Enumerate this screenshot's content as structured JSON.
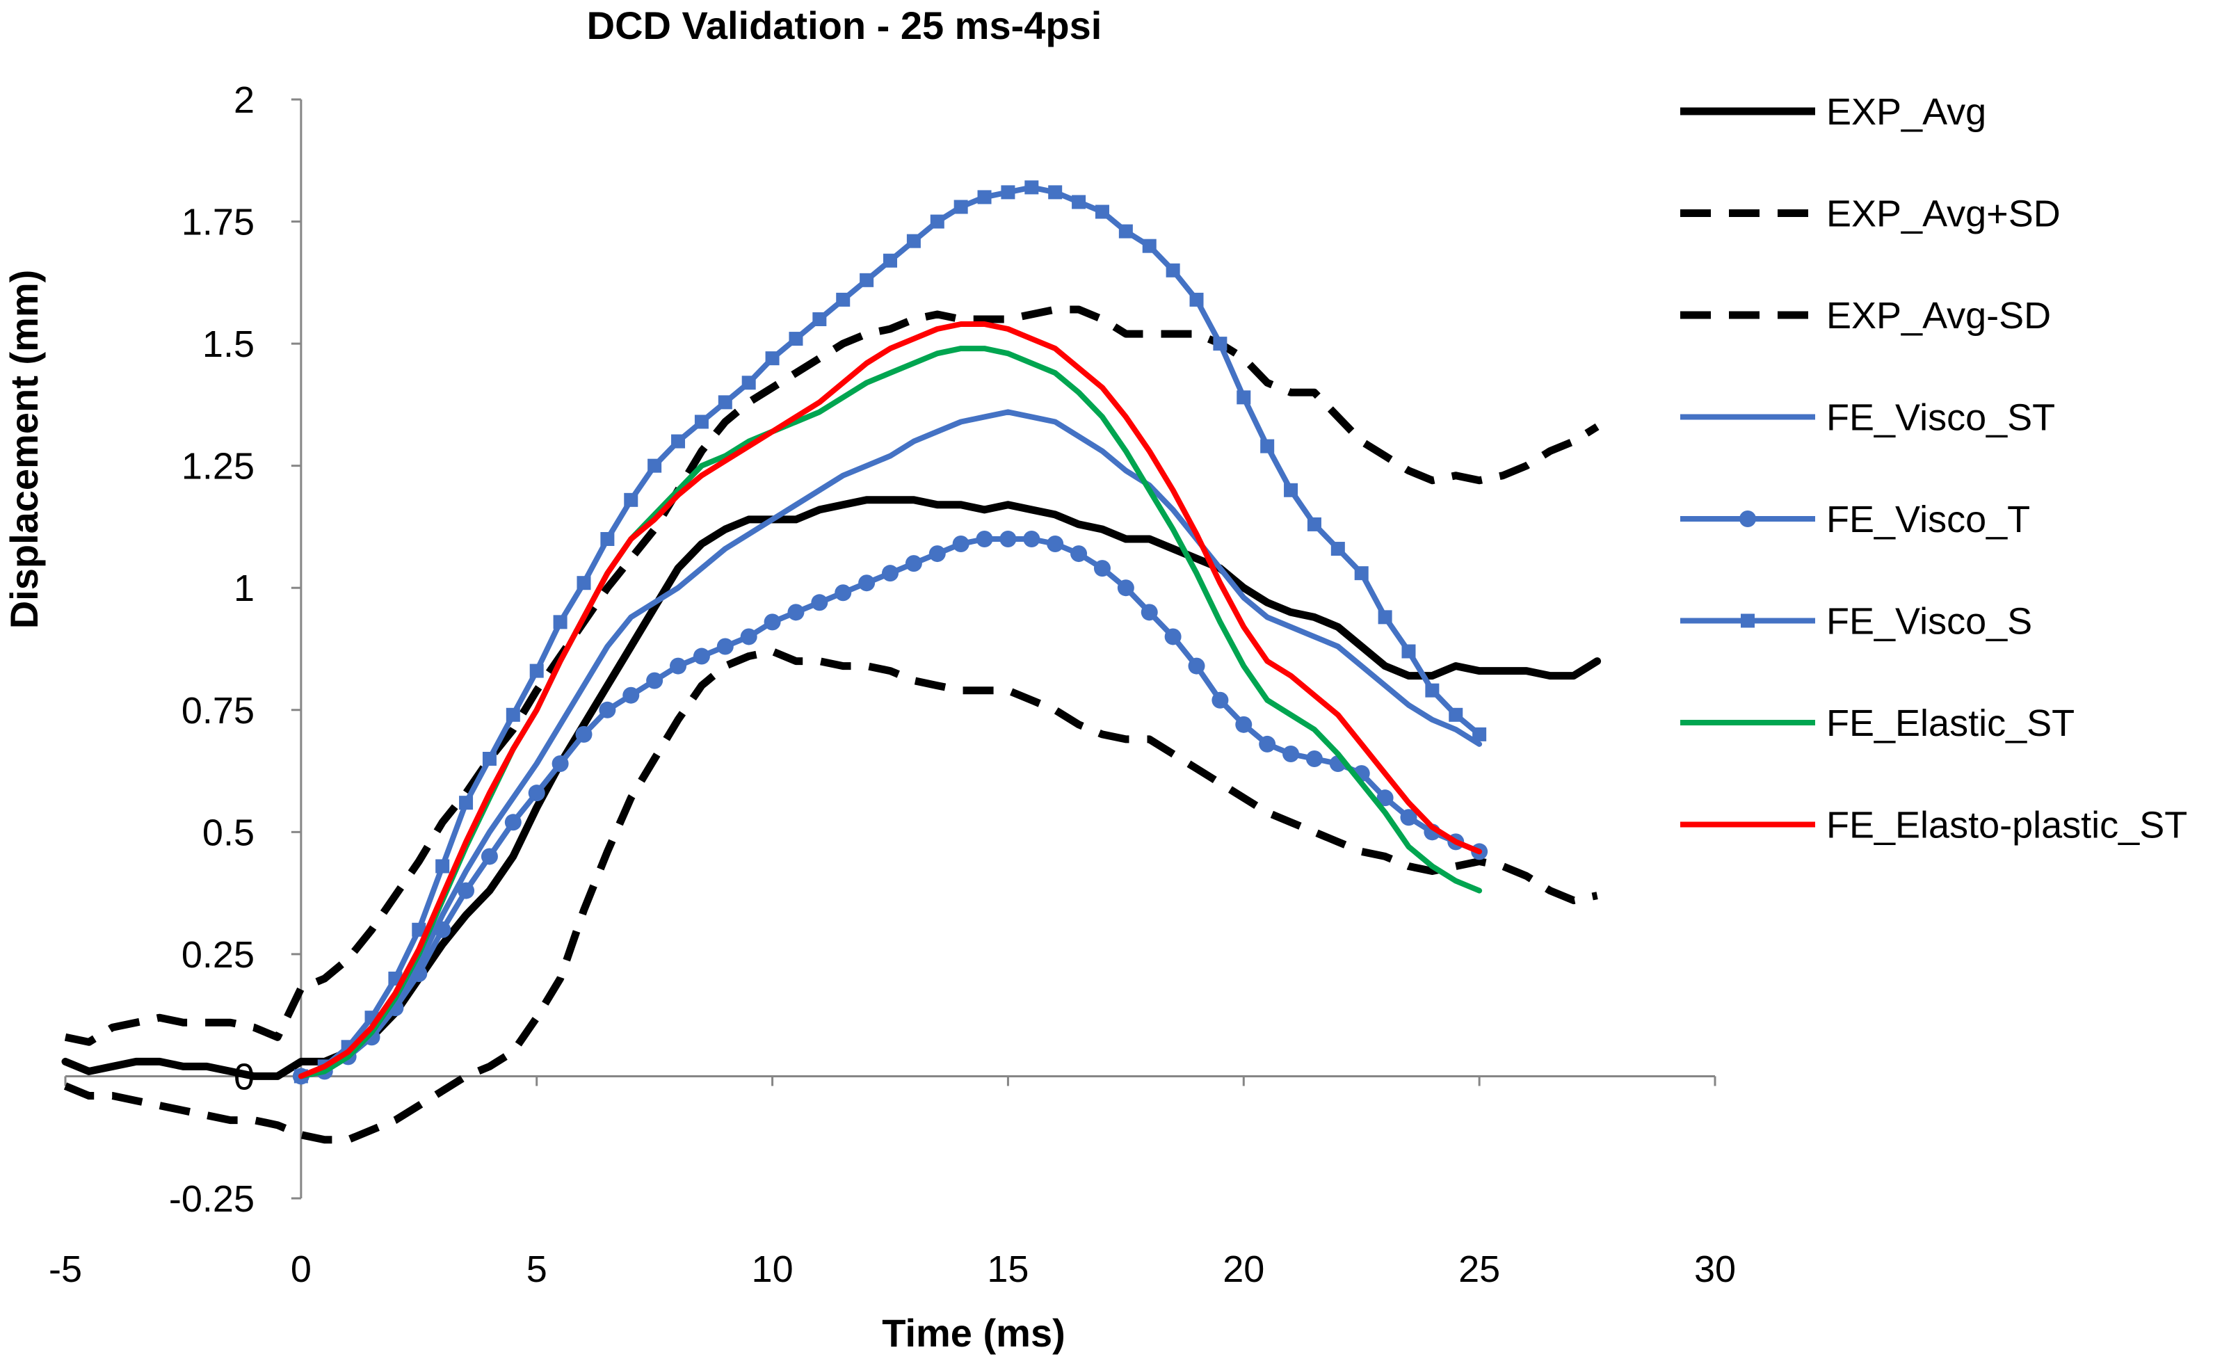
{
  "chart_data": {
    "type": "line",
    "title": "DCD Validation  - 25 ms-4psi",
    "xlabel": "Time (ms)",
    "ylabel": "Displacement (mm)",
    "xlim": [
      -5,
      30
    ],
    "ylim": [
      -0.25,
      2
    ],
    "xticks": [
      -5,
      0,
      5,
      10,
      15,
      20,
      25,
      30
    ],
    "xtick_labels": [
      "-5",
      "0",
      "5",
      "10",
      "15",
      "20",
      "25",
      "30"
    ],
    "yticks": [
      -0.25,
      0,
      0.25,
      0.5,
      0.75,
      1,
      1.25,
      1.5,
      1.75,
      2
    ],
    "ytick_labels": [
      "-0.25",
      "0",
      "0.25",
      "0.5",
      "0.75",
      "1",
      "1.25",
      "1.5",
      "1.75",
      "2"
    ],
    "legend_position": "right",
    "series": [
      {
        "name": "EXP_Avg",
        "color": "#000000",
        "dash": "solid",
        "marker": "none",
        "width": 11,
        "x": [
          -5,
          -4.5,
          -4,
          -3.5,
          -3,
          -2.5,
          -2,
          -1.5,
          -1,
          -0.5,
          0,
          0.5,
          1,
          1.5,
          2,
          2.5,
          3,
          3.5,
          4,
          4.5,
          5,
          5.5,
          6,
          6.5,
          7,
          7.5,
          8,
          8.5,
          9,
          9.5,
          10,
          10.5,
          11,
          11.5,
          12,
          12.5,
          13,
          13.5,
          14,
          14.5,
          15,
          15.5,
          16,
          16.5,
          17,
          17.5,
          18,
          18.5,
          19,
          19.5,
          20,
          20.5,
          21,
          21.5,
          22,
          22.5,
          23,
          23.5,
          24,
          24.5,
          25,
          25.5,
          26,
          26.5,
          27,
          27.5
        ],
        "y": [
          0.03,
          0.01,
          0.02,
          0.03,
          0.03,
          0.02,
          0.02,
          0.01,
          0.0,
          0.0,
          0.03,
          0.03,
          0.05,
          0.08,
          0.13,
          0.2,
          0.27,
          0.33,
          0.38,
          0.45,
          0.55,
          0.64,
          0.72,
          0.8,
          0.88,
          0.96,
          1.04,
          1.09,
          1.12,
          1.14,
          1.14,
          1.14,
          1.16,
          1.17,
          1.18,
          1.18,
          1.18,
          1.17,
          1.17,
          1.16,
          1.17,
          1.16,
          1.15,
          1.13,
          1.12,
          1.1,
          1.1,
          1.08,
          1.06,
          1.04,
          1.0,
          0.97,
          0.95,
          0.94,
          0.92,
          0.88,
          0.84,
          0.82,
          0.82,
          0.84,
          0.83,
          0.83,
          0.83,
          0.82,
          0.82,
          0.85
        ]
      },
      {
        "name": "EXP_Avg+SD",
        "color": "#000000",
        "dash": "dashed",
        "marker": "none",
        "width": 11,
        "x": [
          -5,
          -4.5,
          -4,
          -3.5,
          -3,
          -2.5,
          -2,
          -1.5,
          -1,
          -0.5,
          0,
          0.5,
          1,
          1.5,
          2,
          2.5,
          3,
          3.5,
          4,
          4.5,
          5,
          5.5,
          6,
          6.5,
          7,
          7.5,
          8,
          8.5,
          9,
          9.5,
          10,
          10.5,
          11,
          11.5,
          12,
          12.5,
          13,
          13.5,
          14,
          14.5,
          15,
          15.5,
          16,
          16.5,
          17,
          17.5,
          18,
          18.5,
          19,
          19.5,
          20,
          20.5,
          21,
          21.5,
          22,
          22.5,
          23,
          23.5,
          24,
          24.5,
          25,
          25.5,
          26,
          26.5,
          27,
          27.5
        ],
        "y": [
          0.08,
          0.07,
          0.1,
          0.11,
          0.12,
          0.11,
          0.11,
          0.11,
          0.1,
          0.08,
          0.18,
          0.2,
          0.24,
          0.3,
          0.37,
          0.44,
          0.52,
          0.58,
          0.65,
          0.71,
          0.79,
          0.86,
          0.93,
          1.0,
          1.06,
          1.12,
          1.2,
          1.28,
          1.34,
          1.38,
          1.41,
          1.44,
          1.47,
          1.5,
          1.52,
          1.53,
          1.55,
          1.56,
          1.55,
          1.55,
          1.55,
          1.56,
          1.57,
          1.57,
          1.55,
          1.52,
          1.52,
          1.52,
          1.52,
          1.5,
          1.47,
          1.42,
          1.4,
          1.4,
          1.35,
          1.3,
          1.27,
          1.24,
          1.22,
          1.23,
          1.22,
          1.23,
          1.25,
          1.28,
          1.3,
          1.33
        ]
      },
      {
        "name": "EXP_Avg-SD",
        "color": "#000000",
        "dash": "dashed",
        "marker": "none",
        "width": 11,
        "x": [
          -5,
          -4.5,
          -4,
          -3.5,
          -3,
          -2.5,
          -2,
          -1.5,
          -1,
          -0.5,
          0,
          0.5,
          1,
          1.5,
          2,
          2.5,
          3,
          3.5,
          4,
          4.5,
          5,
          5.5,
          6,
          6.5,
          7,
          7.5,
          8,
          8.5,
          9,
          9.5,
          10,
          10.5,
          11,
          11.5,
          12,
          12.5,
          13,
          13.5,
          14,
          14.5,
          15,
          15.5,
          16,
          16.5,
          17,
          17.5,
          18,
          18.5,
          19,
          19.5,
          20,
          20.5,
          21,
          21.5,
          22,
          22.5,
          23,
          23.5,
          24,
          24.5,
          25,
          25.5,
          26,
          26.5,
          27,
          27.5
        ],
        "y": [
          -0.02,
          -0.04,
          -0.04,
          -0.05,
          -0.06,
          -0.07,
          -0.08,
          -0.09,
          -0.09,
          -0.1,
          -0.12,
          -0.13,
          -0.13,
          -0.11,
          -0.09,
          -0.06,
          -0.03,
          0.0,
          0.02,
          0.05,
          0.12,
          0.2,
          0.34,
          0.46,
          0.57,
          0.65,
          0.73,
          0.8,
          0.84,
          0.86,
          0.87,
          0.85,
          0.85,
          0.84,
          0.84,
          0.83,
          0.81,
          0.8,
          0.79,
          0.79,
          0.79,
          0.77,
          0.75,
          0.72,
          0.7,
          0.69,
          0.69,
          0.66,
          0.63,
          0.6,
          0.57,
          0.54,
          0.52,
          0.5,
          0.48,
          0.46,
          0.45,
          0.43,
          0.42,
          0.43,
          0.44,
          0.43,
          0.41,
          0.38,
          0.36,
          0.37
        ]
      },
      {
        "name": "FE_Visco_ST",
        "color": "#4472C4",
        "dash": "solid",
        "marker": "none",
        "width": 8,
        "x": [
          0,
          0.5,
          1,
          1.5,
          2,
          2.5,
          3,
          3.5,
          4,
          4.5,
          5,
          5.5,
          6,
          6.5,
          7,
          7.5,
          8,
          8.5,
          9,
          9.5,
          10,
          10.5,
          11,
          11.5,
          12,
          12.5,
          13,
          13.5,
          14,
          14.5,
          15,
          15.5,
          16,
          16.5,
          17,
          17.5,
          18,
          18.5,
          19,
          19.5,
          20,
          20.5,
          21,
          21.5,
          22,
          22.5,
          23,
          23.5,
          24,
          24.5,
          25
        ],
        "y": [
          0.0,
          0.01,
          0.04,
          0.08,
          0.15,
          0.23,
          0.33,
          0.42,
          0.5,
          0.57,
          0.64,
          0.72,
          0.8,
          0.88,
          0.94,
          0.97,
          1.0,
          1.04,
          1.08,
          1.11,
          1.14,
          1.17,
          1.2,
          1.23,
          1.25,
          1.27,
          1.3,
          1.32,
          1.34,
          1.35,
          1.36,
          1.35,
          1.34,
          1.31,
          1.28,
          1.24,
          1.21,
          1.16,
          1.1,
          1.04,
          0.98,
          0.94,
          0.92,
          0.9,
          0.88,
          0.84,
          0.8,
          0.76,
          0.73,
          0.71,
          0.68
        ]
      },
      {
        "name": "FE_Visco_T",
        "color": "#4472C4",
        "dash": "solid",
        "marker": "circle",
        "width": 8,
        "x": [
          0,
          0.5,
          1,
          1.5,
          2,
          2.5,
          3,
          3.5,
          4,
          4.5,
          5,
          5.5,
          6,
          6.5,
          7,
          7.5,
          8,
          8.5,
          9,
          9.5,
          10,
          10.5,
          11,
          11.5,
          12,
          12.5,
          13,
          13.5,
          14,
          14.5,
          15,
          15.5,
          16,
          16.5,
          17,
          17.5,
          18,
          18.5,
          19,
          19.5,
          20,
          20.5,
          21,
          21.5,
          22,
          22.5,
          23,
          23.5,
          24,
          24.5,
          25
        ],
        "y": [
          0.0,
          0.01,
          0.04,
          0.08,
          0.14,
          0.21,
          0.3,
          0.38,
          0.45,
          0.52,
          0.58,
          0.64,
          0.7,
          0.75,
          0.78,
          0.81,
          0.84,
          0.86,
          0.88,
          0.9,
          0.93,
          0.95,
          0.97,
          0.99,
          1.01,
          1.03,
          1.05,
          1.07,
          1.09,
          1.1,
          1.1,
          1.1,
          1.09,
          1.07,
          1.04,
          1.0,
          0.95,
          0.9,
          0.84,
          0.77,
          0.72,
          0.68,
          0.66,
          0.65,
          0.64,
          0.62,
          0.57,
          0.53,
          0.5,
          0.48,
          0.46
        ]
      },
      {
        "name": "FE_Visco_S",
        "color": "#4472C4",
        "dash": "solid",
        "marker": "square",
        "width": 8,
        "x": [
          0,
          0.5,
          1,
          1.5,
          2,
          2.5,
          3,
          3.5,
          4,
          4.5,
          5,
          5.5,
          6,
          6.5,
          7,
          7.5,
          8,
          8.5,
          9,
          9.5,
          10,
          10.5,
          11,
          11.5,
          12,
          12.5,
          13,
          13.5,
          14,
          14.5,
          15,
          15.5,
          16,
          16.5,
          17,
          17.5,
          18,
          18.5,
          19,
          19.5,
          20,
          20.5,
          21,
          21.5,
          22,
          22.5,
          23,
          23.5,
          24,
          24.5,
          25
        ],
        "y": [
          0.0,
          0.02,
          0.06,
          0.12,
          0.2,
          0.3,
          0.43,
          0.56,
          0.65,
          0.74,
          0.83,
          0.93,
          1.01,
          1.1,
          1.18,
          1.25,
          1.3,
          1.34,
          1.38,
          1.42,
          1.47,
          1.51,
          1.55,
          1.59,
          1.63,
          1.67,
          1.71,
          1.75,
          1.78,
          1.8,
          1.81,
          1.82,
          1.81,
          1.79,
          1.77,
          1.73,
          1.7,
          1.65,
          1.59,
          1.5,
          1.39,
          1.29,
          1.2,
          1.13,
          1.08,
          1.03,
          0.94,
          0.87,
          0.79,
          0.74,
          0.7
        ]
      },
      {
        "name": "FE_Elastic_ST",
        "color": "#00A550",
        "dash": "solid",
        "marker": "none",
        "width": 8,
        "x": [
          0,
          0.5,
          1,
          1.5,
          2,
          2.5,
          3,
          3.5,
          4,
          4.5,
          5,
          5.5,
          6,
          6.5,
          7,
          7.5,
          8,
          8.5,
          9,
          9.5,
          10,
          10.5,
          11,
          11.5,
          12,
          12.5,
          13,
          13.5,
          14,
          14.5,
          15,
          15.5,
          16,
          16.5,
          17,
          17.5,
          18,
          18.5,
          19,
          19.5,
          20,
          20.5,
          21,
          21.5,
          22,
          22.5,
          23,
          23.5,
          24,
          24.5,
          25
        ],
        "y": [
          0.0,
          0.01,
          0.04,
          0.09,
          0.16,
          0.25,
          0.36,
          0.47,
          0.57,
          0.67,
          0.75,
          0.85,
          0.94,
          1.03,
          1.1,
          1.15,
          1.2,
          1.25,
          1.27,
          1.3,
          1.32,
          1.34,
          1.36,
          1.39,
          1.42,
          1.44,
          1.46,
          1.48,
          1.49,
          1.49,
          1.48,
          1.46,
          1.44,
          1.4,
          1.35,
          1.28,
          1.2,
          1.12,
          1.03,
          0.93,
          0.84,
          0.77,
          0.74,
          0.71,
          0.66,
          0.6,
          0.54,
          0.47,
          0.43,
          0.4,
          0.38
        ]
      },
      {
        "name": "FE_Elasto-plastic_ST",
        "color": "#FF0000",
        "dash": "solid",
        "marker": "none",
        "width": 8,
        "x": [
          0,
          0.5,
          1,
          1.5,
          2,
          2.5,
          3,
          3.5,
          4,
          4.5,
          5,
          5.5,
          6,
          6.5,
          7,
          7.5,
          8,
          8.5,
          9,
          9.5,
          10,
          10.5,
          11,
          11.5,
          12,
          12.5,
          13,
          13.5,
          14,
          14.5,
          15,
          15.5,
          16,
          16.5,
          17,
          17.5,
          18,
          18.5,
          19,
          19.5,
          20,
          20.5,
          21,
          21.5,
          22,
          22.5,
          23,
          23.5,
          24,
          24.5,
          25
        ],
        "y": [
          0.0,
          0.02,
          0.05,
          0.1,
          0.17,
          0.26,
          0.37,
          0.48,
          0.58,
          0.67,
          0.75,
          0.85,
          0.94,
          1.03,
          1.1,
          1.14,
          1.19,
          1.23,
          1.26,
          1.29,
          1.32,
          1.35,
          1.38,
          1.42,
          1.46,
          1.49,
          1.51,
          1.53,
          1.54,
          1.54,
          1.53,
          1.51,
          1.49,
          1.45,
          1.41,
          1.35,
          1.28,
          1.2,
          1.11,
          1.01,
          0.92,
          0.85,
          0.82,
          0.78,
          0.74,
          0.68,
          0.62,
          0.56,
          0.51,
          0.48,
          0.46
        ]
      }
    ]
  }
}
